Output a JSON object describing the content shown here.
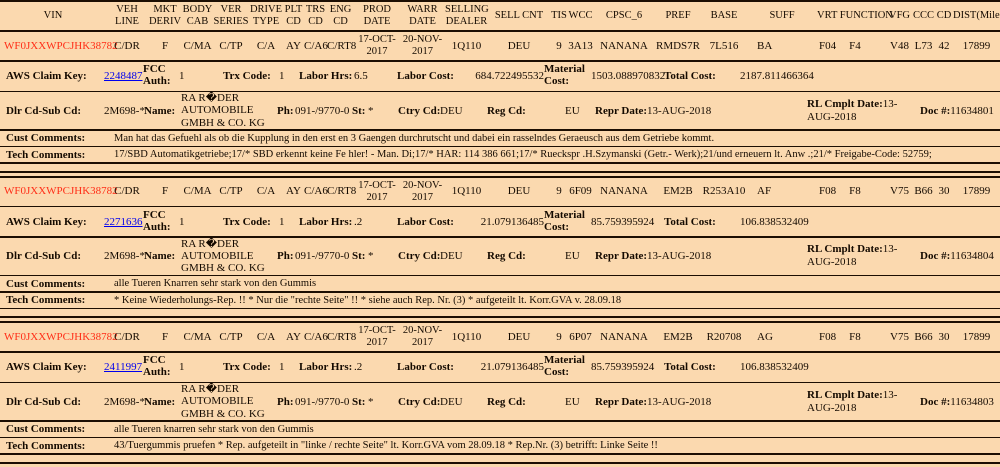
{
  "colors": {
    "background": "#fbd9af",
    "rule_line": "#1c0e02",
    "vin_red": "#ff2d16",
    "link_blue": "#0000ee"
  },
  "columns": [
    {
      "label": "VIN"
    },
    {
      "label": "VEH LINE"
    },
    {
      "label": "MKT DERIV"
    },
    {
      "label": "BODY CAB"
    },
    {
      "label": "VER SERIES"
    },
    {
      "label": "DRIVE TYPE"
    },
    {
      "label": "PLT CD"
    },
    {
      "label": "TRS CD"
    },
    {
      "label": "ENG CD"
    },
    {
      "label": "PROD DATE"
    },
    {
      "label": "WARR DATE"
    },
    {
      "label": "SELLING DEALER"
    },
    {
      "label": "SELL CNT"
    },
    {
      "label": "TIS"
    },
    {
      "label": "WCC"
    },
    {
      "label": "CPSC_6"
    },
    {
      "label": "PREF"
    },
    {
      "label": "BASE"
    },
    {
      "label": "SUFF"
    },
    {
      "label": "VRT FUNCTION"
    },
    {
      "label": "VFG"
    },
    {
      "label": "CCC"
    },
    {
      "label": "CD"
    },
    {
      "label": "DIST(Miles)"
    }
  ],
  "labels": {
    "aws_claim_key": "AWS Claim Key:",
    "fcc_auth": "FCC Auth:",
    "trx_code": "Trx Code:",
    "labor_hrs": "Labor Hrs:",
    "labor_cost": "Labor Cost:",
    "material_cost": "Material Cost:",
    "total_cost": "Total Cost:",
    "dlr_cd_sub_cd": "Dlr Cd-Sub Cd:",
    "name": "Name:",
    "ph": "Ph:",
    "st": "St:",
    "ctry_cd": "Ctry Cd:",
    "reg_cd": "Reg Cd:",
    "repr_date": "Repr Date:",
    "rl_cmplt_date": "RL Cmplt Date:",
    "doc_num": "Doc #:",
    "cust_comments": "Cust Comments:",
    "tech_comments": "Tech Comments:"
  },
  "claims": [
    {
      "vin": "WF0JXXWPCJHK38782",
      "veh_line": "C/DR",
      "mkt_deriv": "F",
      "body_cab": "C/MA",
      "ver_series": "C/TP",
      "drive_type": "C/A",
      "plt_cd": "AY",
      "trs_cd": "C/A6",
      "eng_cd": "C/RT8",
      "prod_date": "17-OCT-2017",
      "warr_date": "20-NOV-2017",
      "selling_dealer": "1Q110",
      "sell_cnt": "DEU",
      "tis": "9",
      "wcc": "3A13",
      "cpsc_6": "NANANA",
      "pref": "RMDS7R",
      "base": "7L516",
      "suff": "BA",
      "vrt": "F04",
      "function": "F4",
      "vfg": "V48",
      "ccc": "L73",
      "cd": "42",
      "dist_miles": "17899",
      "aws_claim_key": "2248487",
      "fcc_auth": "1",
      "trx_code": "1",
      "labor_hrs": "6.5",
      "labor_cost": "684.722495532",
      "material_cost": "1503.088970832",
      "total_cost": "2187.811466364",
      "dlr_cd_sub_cd": "2M698-*",
      "dealer_name": "RA R�DER AUTOMOBILE GMBH & CO. KG",
      "ph": "091-/9770-0",
      "st": "*",
      "ctry_cd": "DEU",
      "reg_cd": "EU",
      "repr_date": "13-AUG-2018",
      "rl_cmplt_date": "13-AUG-2018",
      "doc_num": "11634801",
      "cust_comments": "Man hat das Gefuehl als ob die Kupplung in den erst en 3 Gaengen durchrutscht und dabei ein rasselndes Geraeusch aus dem Getriebe kommt.",
      "tech_comments": "17/SBD Automatikgetriebe;17/* SBD erkennt keine Fe hler! - Man. Di;17/* HAR: 114 386 661;17/* Rueckspr .H.Szymanski (Getr.- Werk);21/und erneuern lt. Anw .;21/* Freigabe-Code: 52759;"
    },
    {
      "vin": "WF0JXXWPCJHK38782",
      "veh_line": "C/DR",
      "mkt_deriv": "F",
      "body_cab": "C/MA",
      "ver_series": "C/TP",
      "drive_type": "C/A",
      "plt_cd": "AY",
      "trs_cd": "C/A6",
      "eng_cd": "C/RT8",
      "prod_date": "17-OCT-2017",
      "warr_date": "20-NOV-2017",
      "selling_dealer": "1Q110",
      "sell_cnt": "DEU",
      "tis": "9",
      "wcc": "6F09",
      "cpsc_6": "NANANA",
      "pref": "EM2B",
      "base": "R253A10",
      "suff": "AF",
      "vrt": "F08",
      "function": "F8",
      "vfg": "V75",
      "ccc": "B66",
      "cd": "30",
      "dist_miles": "17899",
      "aws_claim_key": "2271636",
      "fcc_auth": "1",
      "trx_code": "1",
      "labor_hrs": ".2",
      "labor_cost": "21.079136485",
      "material_cost": "85.759395924",
      "total_cost": "106.838532409",
      "dlr_cd_sub_cd": "2M698-*",
      "dealer_name": "RA R�DER AUTOMOBILE GMBH & CO. KG",
      "ph": "091-/9770-0",
      "st": "*",
      "ctry_cd": "DEU",
      "reg_cd": "EU",
      "repr_date": "13-AUG-2018",
      "rl_cmplt_date": "13-AUG-2018",
      "doc_num": "11634804",
      "cust_comments": "alle Tueren Knarren sehr stark von den Gummis",
      "tech_comments": "* Keine Wiederholungs-Rep. !! * Nur die \"rechte Seite\" !! * siehe auch Rep. Nr. (3) * aufgeteilt lt. Korr.GVA v. 28.09.18"
    },
    {
      "vin": "WF0JXXWPCJHK38782",
      "veh_line": "C/DR",
      "mkt_deriv": "F",
      "body_cab": "C/MA",
      "ver_series": "C/TP",
      "drive_type": "C/A",
      "plt_cd": "AY",
      "trs_cd": "C/A6",
      "eng_cd": "C/RT8",
      "prod_date": "17-OCT-2017",
      "warr_date": "20-NOV-2017",
      "selling_dealer": "1Q110",
      "sell_cnt": "DEU",
      "tis": "9",
      "wcc": "6P07",
      "cpsc_6": "NANANA",
      "pref": "EM2B",
      "base": "R20708",
      "suff": "AG",
      "vrt": "F08",
      "function": "F8",
      "vfg": "V75",
      "ccc": "B66",
      "cd": "30",
      "dist_miles": "17899",
      "aws_claim_key": "2411997",
      "fcc_auth": "1",
      "trx_code": "1",
      "labor_hrs": ".2",
      "labor_cost": "21.079136485",
      "material_cost": "85.759395924",
      "total_cost": "106.838532409",
      "dlr_cd_sub_cd": "2M698-*",
      "dealer_name": "RA R�DER AUTOMOBILE GMBH & CO. KG",
      "ph": "091-/9770-0",
      "st": "*",
      "ctry_cd": "DEU",
      "reg_cd": "EU",
      "repr_date": "13-AUG-2018",
      "rl_cmplt_date": "13-AUG-2018",
      "doc_num": "11634803",
      "cust_comments": "alle Tueren knarren sehr stark von den Gummis",
      "tech_comments": "43/Tuergummis pruefen * Rep. aufgeteilt in \"linke / rechte Seite\" lt. Korr.GVA vom 28.09.18 * Rep.Nr. (3) betrifft: Linke Seite !!"
    }
  ]
}
